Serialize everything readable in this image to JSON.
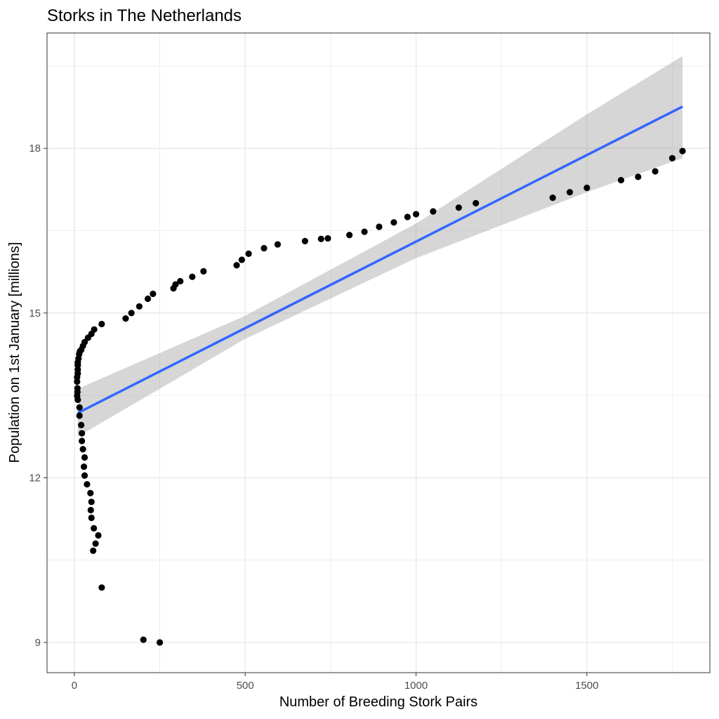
{
  "chart_data": {
    "type": "scatter",
    "title": "Storks in The Netherlands",
    "xlabel": "Number of Breeding Stork Pairs",
    "ylabel": "Population on 1st January [millions]",
    "xlim": [
      -80,
      1860
    ],
    "ylim": [
      8.45,
      20.1
    ],
    "x_ticks": [
      0,
      500,
      1000,
      1500
    ],
    "x_tick_labels": [
      "0",
      "500",
      "1000",
      "1500"
    ],
    "y_ticks": [
      9,
      12,
      15,
      18
    ],
    "y_tick_labels": [
      "9",
      "12",
      "15",
      "18"
    ],
    "grid": true,
    "colors": {
      "points": "#000000",
      "fit_line": "#3366ff",
      "ribbon": "#999999",
      "grid": "#ebebeb",
      "panel_border": "#333333"
    },
    "series": [
      {
        "kind": "points",
        "x": [
          250,
          202,
          80,
          55,
          62,
          70,
          57,
          50,
          48,
          50,
          47,
          37,
          30,
          28,
          30,
          25,
          22,
          22,
          20,
          15,
          15,
          10,
          8,
          9,
          9,
          8,
          8,
          10,
          10,
          10,
          10,
          12,
          14,
          16,
          20,
          25,
          30,
          40,
          50,
          58,
          80,
          150,
          167,
          190,
          215,
          230,
          290,
          296,
          310,
          345,
          378,
          475,
          490,
          510,
          555,
          595,
          675,
          722,
          742,
          805,
          849,
          892,
          935,
          975,
          1000,
          1050,
          1125,
          1175,
          1400,
          1450,
          1500,
          1600,
          1650,
          1700,
          1750,
          1780
        ],
        "y": [
          9.0,
          9.05,
          10.0,
          10.67,
          10.8,
          10.95,
          11.08,
          11.27,
          11.41,
          11.56,
          11.72,
          11.88,
          12.04,
          12.2,
          12.37,
          12.52,
          12.67,
          12.81,
          12.96,
          13.13,
          13.28,
          13.42,
          13.49,
          13.56,
          13.63,
          13.75,
          13.83,
          13.9,
          13.97,
          14.05,
          14.1,
          14.17,
          14.25,
          14.3,
          14.33,
          14.4,
          14.47,
          14.55,
          14.62,
          14.7,
          14.8,
          14.9,
          15.0,
          15.12,
          15.26,
          15.35,
          15.45,
          15.52,
          15.58,
          15.66,
          15.76,
          15.87,
          15.97,
          16.08,
          16.18,
          16.25,
          16.31,
          16.35,
          16.36,
          16.42,
          16.48,
          16.57,
          16.65,
          16.75,
          16.8,
          16.85,
          16.92,
          17.0,
          17.1,
          17.2,
          17.28,
          17.42,
          17.48,
          17.58,
          17.82,
          17.95
        ]
      },
      {
        "kind": "fit_line",
        "x": [
          10,
          1780
        ],
        "y": [
          13.18,
          18.76
        ]
      },
      {
        "kind": "confidence_band",
        "x": [
          10,
          500,
          1000,
          1500,
          1780
        ],
        "lower": [
          12.75,
          14.53,
          16.0,
          17.2,
          17.82
        ],
        "upper": [
          13.62,
          14.95,
          16.63,
          18.62,
          19.68
        ]
      }
    ]
  }
}
